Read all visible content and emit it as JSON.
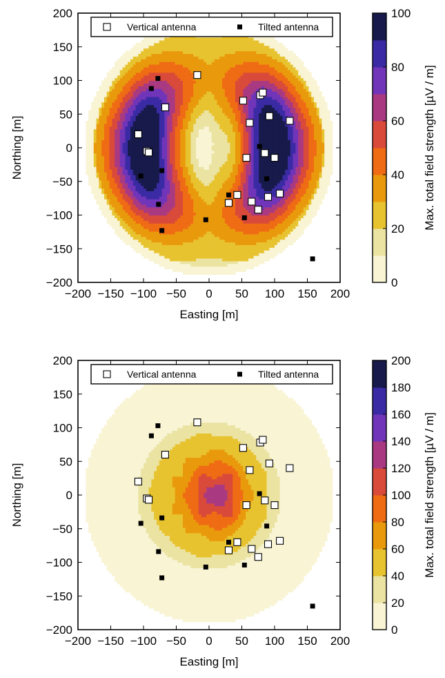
{
  "chart_data": [
    {
      "type": "heatmap",
      "xlabel": "Easting [m]",
      "ylabel": "Northing [m]",
      "xlim": [
        -200,
        200
      ],
      "ylim": [
        -200,
        200
      ],
      "xticks": [
        "−200",
        "−150",
        "−100",
        "−50",
        "0",
        "50",
        "100",
        "150",
        "200"
      ],
      "yticks": [
        "−200",
        "−150",
        "−100",
        "−50",
        "0",
        "50",
        "100",
        "150",
        "200"
      ],
      "colorbar_label": "Max. total field strength [µV / m]",
      "colorbar_ticks": [
        "0",
        "20",
        "40",
        "60",
        "80",
        "100"
      ],
      "colorbar_max": 100,
      "legend": {
        "placement": "top",
        "vertical_label": "Vertical antenna",
        "tilted_label": "Tilted antenna"
      },
      "field": {
        "pattern": "ring",
        "peak": 92,
        "coverage_radius": 190
      },
      "vertical_antennas": [
        [
          -108,
          20
        ],
        [
          -95,
          -5
        ],
        [
          -92,
          -7
        ],
        [
          -67,
          60
        ],
        [
          -18,
          108
        ],
        [
          52,
          70
        ],
        [
          78,
          78
        ],
        [
          82,
          82
        ],
        [
          62,
          37
        ],
        [
          92,
          47
        ],
        [
          123,
          40
        ],
        [
          57,
          -15
        ],
        [
          85,
          -8
        ],
        [
          100,
          -15
        ],
        [
          30,
          -82
        ],
        [
          43,
          -70
        ],
        [
          65,
          -80
        ],
        [
          75,
          -92
        ],
        [
          90,
          -73
        ],
        [
          108,
          -68
        ]
      ],
      "tilted_antennas": [
        [
          -78,
          103
        ],
        [
          -88,
          88
        ],
        [
          -104,
          -42
        ],
        [
          -72,
          -34
        ],
        [
          -77,
          -84
        ],
        [
          -72,
          -123
        ],
        [
          -5,
          -107
        ],
        [
          77,
          2
        ],
        [
          88,
          -46
        ],
        [
          30,
          -70
        ],
        [
          54,
          -104
        ],
        [
          158,
          -165
        ]
      ]
    },
    {
      "type": "heatmap",
      "xlabel": "Easting [m]",
      "ylabel": "Northing [m]",
      "xlim": [
        -200,
        200
      ],
      "ylim": [
        -200,
        200
      ],
      "xticks": [
        "−200",
        "−150",
        "−100",
        "−50",
        "0",
        "50",
        "100",
        "150",
        "200"
      ],
      "yticks": [
        "−200",
        "−150",
        "−100",
        "−50",
        "0",
        "50",
        "100",
        "150",
        "200"
      ],
      "colorbar_label": "Max. total field strength [µV / m]",
      "colorbar_ticks": [
        "0",
        "20",
        "40",
        "60",
        "80",
        "100",
        "120",
        "140",
        "160",
        "180",
        "200"
      ],
      "colorbar_max": 200,
      "legend": {
        "placement": "top",
        "vertical_label": "Vertical antenna",
        "tilted_label": "Tilted antenna"
      },
      "field": {
        "pattern": "center",
        "peak": 155,
        "coverage_radius": 190
      },
      "vertical_antennas": [
        [
          -108,
          20
        ],
        [
          -95,
          -5
        ],
        [
          -92,
          -7
        ],
        [
          -67,
          60
        ],
        [
          -18,
          108
        ],
        [
          52,
          70
        ],
        [
          78,
          78
        ],
        [
          82,
          82
        ],
        [
          62,
          37
        ],
        [
          92,
          47
        ],
        [
          123,
          40
        ],
        [
          57,
          -15
        ],
        [
          85,
          -8
        ],
        [
          100,
          -15
        ],
        [
          30,
          -82
        ],
        [
          43,
          -70
        ],
        [
          65,
          -80
        ],
        [
          75,
          -92
        ],
        [
          90,
          -73
        ],
        [
          108,
          -68
        ]
      ],
      "tilted_antennas": [
        [
          -78,
          103
        ],
        [
          -88,
          88
        ],
        [
          -104,
          -42
        ],
        [
          -72,
          -34
        ],
        [
          -77,
          -84
        ],
        [
          -72,
          -123
        ],
        [
          -5,
          -107
        ],
        [
          77,
          2
        ],
        [
          88,
          -46
        ],
        [
          30,
          -70
        ],
        [
          54,
          -104
        ],
        [
          158,
          -165
        ]
      ]
    }
  ]
}
